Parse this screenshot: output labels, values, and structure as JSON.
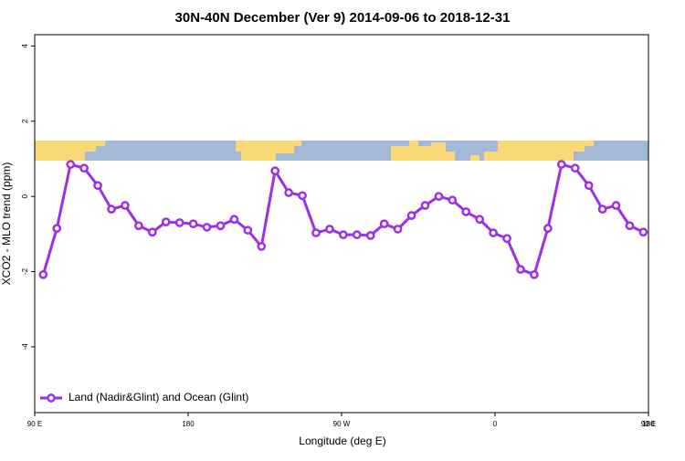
{
  "chart_data": {
    "type": "line",
    "title": "30N-40N December (Ver 9)   2014-09-06 to 2018-12-31",
    "x_label": "Longitude (deg E)",
    "y_label": "XCO2 - MLO trend (ppm)",
    "x": [
      95,
      103,
      111,
      119,
      127,
      135,
      143,
      151,
      159,
      167,
      175,
      183,
      191,
      199,
      207,
      215,
      223,
      231,
      239,
      247,
      255,
      263,
      271,
      279,
      287,
      295,
      303,
      311,
      319,
      327,
      335,
      343,
      351,
      359,
      367,
      375,
      383,
      391,
      399,
      407,
      415,
      423,
      431,
      439,
      447
    ],
    "series": [
      {
        "name": "Land (Nadir&Glint) and Ocean (Glint)",
        "color": "#9b30e8",
        "values": [
          -2.08,
          -0.85,
          0.85,
          0.75,
          0.29,
          -0.34,
          -0.24,
          -0.78,
          -0.95,
          -0.68,
          -0.7,
          -0.73,
          -0.82,
          -0.78,
          -0.61,
          -0.9,
          -1.33,
          0.68,
          0.1,
          0.02,
          -0.97,
          -0.87,
          -1.02,
          -1.02,
          -1.04,
          -0.73,
          -0.87,
          -0.51,
          -0.24,
          0,
          -0.1,
          -0.41,
          -0.61,
          -0.97,
          -1.12,
          -1.94,
          -2.08,
          -0.85,
          0.85,
          0.75,
          0.29,
          -0.34,
          -0.24,
          -0.78,
          -0.95
        ]
      }
    ],
    "xlim": [
      90,
      450
    ],
    "xticks": [
      {
        "value": 90,
        "label": "90 E"
      },
      180,
      {
        "value": 270,
        "label": "90 W"
      },
      {
        "value": 360,
        "label": "0"
      },
      {
        "value": 450,
        "label": "90 E"
      },
      {
        "value": 540,
        "label": "180"
      }
    ],
    "ylim": [
      -5.75,
      4.3
    ],
    "yticks": [
      4,
      2,
      0,
      -2,
      -4
    ],
    "legend": "bottom-left"
  }
}
